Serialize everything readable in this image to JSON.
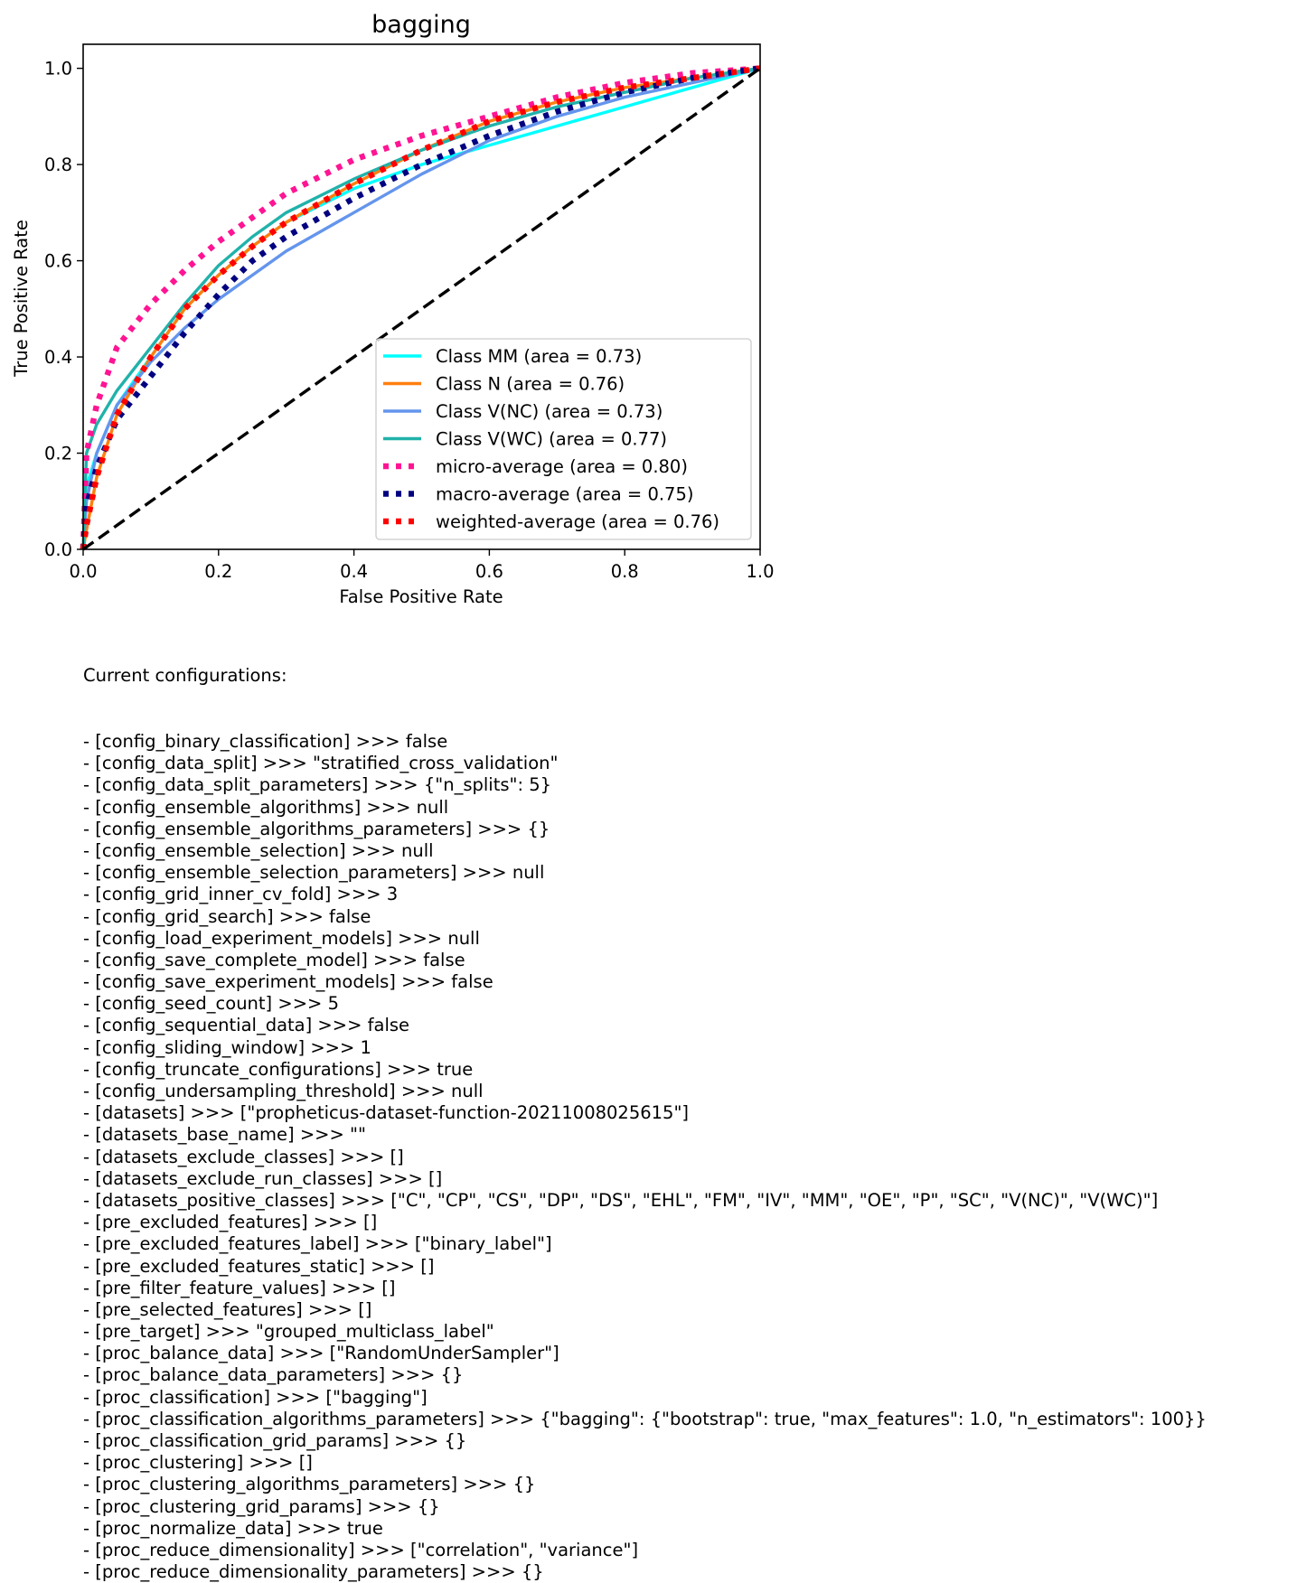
{
  "chart_data": {
    "type": "line",
    "title": "bagging",
    "xlabel": "False Positive Rate",
    "ylabel": "True Positive Rate",
    "xlim": [
      0.0,
      1.0
    ],
    "ylim": [
      0.0,
      1.05
    ],
    "xticks": [
      0.0,
      0.2,
      0.4,
      0.6,
      0.8,
      1.0
    ],
    "xtick_labels": [
      "0.0",
      "0.2",
      "0.4",
      "0.6",
      "0.8",
      "1.0"
    ],
    "yticks": [
      0.0,
      0.2,
      0.4,
      0.6,
      0.8,
      1.0
    ],
    "ytick_labels": [
      "0.0",
      "0.2",
      "0.4",
      "0.6",
      "0.8",
      "1.0"
    ],
    "grid": false,
    "legend_position": "lower-right",
    "series": [
      {
        "name": "Class MM (area = 0.73)",
        "color": "#00ffff",
        "style": "solid",
        "x": [
          0,
          0.005,
          0.02,
          0.05,
          0.1,
          0.15,
          0.2,
          0.25,
          0.3,
          0.4,
          0.5,
          0.6,
          0.7,
          0.8,
          0.9,
          1.0
        ],
        "y": [
          0,
          0.13,
          0.2,
          0.3,
          0.4,
          0.5,
          0.57,
          0.63,
          0.68,
          0.75,
          0.8,
          0.84,
          0.88,
          0.92,
          0.96,
          1.0
        ]
      },
      {
        "name": "Class N (area = 0.76)",
        "color": "#ff7f0e",
        "style": "solid",
        "x": [
          0,
          0.005,
          0.02,
          0.05,
          0.1,
          0.15,
          0.2,
          0.25,
          0.3,
          0.4,
          0.5,
          0.6,
          0.7,
          0.8,
          0.9,
          1.0
        ],
        "y": [
          0,
          0.04,
          0.15,
          0.28,
          0.4,
          0.5,
          0.57,
          0.63,
          0.68,
          0.76,
          0.83,
          0.89,
          0.93,
          0.96,
          0.98,
          1.0
        ]
      },
      {
        "name": "Class V(NC) (area = 0.73)",
        "color": "#6495ed",
        "style": "solid",
        "x": [
          0,
          0.005,
          0.02,
          0.05,
          0.1,
          0.15,
          0.2,
          0.25,
          0.3,
          0.4,
          0.5,
          0.6,
          0.7,
          0.8,
          0.9,
          1.0
        ],
        "y": [
          0,
          0.1,
          0.2,
          0.3,
          0.39,
          0.46,
          0.52,
          0.57,
          0.62,
          0.7,
          0.78,
          0.85,
          0.9,
          0.94,
          0.97,
          1.0
        ]
      },
      {
        "name": "Class V(WC) (area = 0.77)",
        "color": "#20b2aa",
        "style": "solid",
        "x": [
          0,
          0.005,
          0.02,
          0.05,
          0.1,
          0.15,
          0.2,
          0.25,
          0.3,
          0.4,
          0.5,
          0.6,
          0.7,
          0.8,
          0.9,
          1.0
        ],
        "y": [
          0,
          0.2,
          0.26,
          0.33,
          0.42,
          0.51,
          0.59,
          0.65,
          0.7,
          0.77,
          0.83,
          0.88,
          0.92,
          0.95,
          0.98,
          1.0
        ]
      },
      {
        "name": "micro-average (area = 0.80)",
        "color": "#ff1493",
        "style": "dotted",
        "x": [
          0,
          0.005,
          0.02,
          0.05,
          0.1,
          0.15,
          0.2,
          0.25,
          0.3,
          0.4,
          0.5,
          0.6,
          0.7,
          0.8,
          0.9,
          1.0
        ],
        "y": [
          0,
          0.2,
          0.3,
          0.42,
          0.51,
          0.58,
          0.64,
          0.69,
          0.74,
          0.81,
          0.86,
          0.9,
          0.94,
          0.97,
          0.99,
          1.0
        ]
      },
      {
        "name": "macro-average (area = 0.75)",
        "color": "#000080",
        "style": "dotted",
        "x": [
          0,
          0.005,
          0.02,
          0.05,
          0.1,
          0.15,
          0.2,
          0.25,
          0.3,
          0.4,
          0.5,
          0.6,
          0.7,
          0.8,
          0.9,
          1.0
        ],
        "y": [
          0,
          0.09,
          0.17,
          0.27,
          0.36,
          0.45,
          0.53,
          0.6,
          0.65,
          0.73,
          0.8,
          0.86,
          0.91,
          0.95,
          0.98,
          1.0
        ]
      },
      {
        "name": "weighted-average (area = 0.76)",
        "color": "#ff0000",
        "style": "dotted",
        "x": [
          0,
          0.005,
          0.02,
          0.05,
          0.1,
          0.15,
          0.2,
          0.25,
          0.3,
          0.4,
          0.5,
          0.6,
          0.7,
          0.8,
          0.9,
          1.0
        ],
        "y": [
          0,
          0.05,
          0.15,
          0.28,
          0.4,
          0.5,
          0.57,
          0.63,
          0.68,
          0.76,
          0.83,
          0.89,
          0.93,
          0.96,
          0.98,
          1.0
        ]
      }
    ],
    "reference_line": {
      "x": [
        0,
        1
      ],
      "y": [
        0,
        1
      ],
      "color": "#000000",
      "style": "dashed"
    }
  },
  "config": {
    "header": "Current configurations:",
    "lines": [
      "- [config_binary_classification] >>> false",
      "- [config_data_split] >>> \"stratified_cross_validation\"",
      "- [config_data_split_parameters] >>> {\"n_splits\": 5}",
      "- [config_ensemble_algorithms] >>> null",
      "- [config_ensemble_algorithms_parameters] >>> {}",
      "- [config_ensemble_selection] >>> null",
      "- [config_ensemble_selection_parameters] >>> null",
      "- [config_grid_inner_cv_fold] >>> 3",
      "- [config_grid_search] >>> false",
      "- [config_load_experiment_models] >>> null",
      "- [config_save_complete_model] >>> false",
      "- [config_save_experiment_models] >>> false",
      "- [config_seed_count] >>> 5",
      "- [config_sequential_data] >>> false",
      "- [config_sliding_window] >>> 1",
      "- [config_truncate_configurations] >>> true",
      "- [config_undersampling_threshold] >>> null",
      "- [datasets] >>> [\"propheticus-dataset-function-20211008025615\"]",
      "- [datasets_base_name] >>> \"\"",
      "- [datasets_exclude_classes] >>> []",
      "- [datasets_exclude_run_classes] >>> []",
      "- [datasets_positive_classes] >>> [\"C\", \"CP\", \"CS\", \"DP\", \"DS\", \"EHL\", \"FM\", \"IV\", \"MM\", \"OE\", \"P\", \"SC\", \"V(NC)\", \"V(WC)\"]",
      "- [pre_excluded_features] >>> []",
      "- [pre_excluded_features_label] >>> [\"binary_label\"]",
      "- [pre_excluded_features_static] >>> []",
      "- [pre_filter_feature_values] >>> []",
      "- [pre_selected_features] >>> []",
      "- [pre_target] >>> \"grouped_multiclass_label\"",
      "- [proc_balance_data] >>> [\"RandomUnderSampler\"]",
      "- [proc_balance_data_parameters] >>> {}",
      "- [proc_classification] >>> [\"bagging\"]",
      "- [proc_classification_algorithms_parameters] >>> {\"bagging\": {\"bootstrap\": true, \"max_features\": 1.0, \"n_estimators\": 100}}",
      "- [proc_classification_grid_params] >>> {}",
      "- [proc_clustering] >>> []",
      "- [proc_clustering_algorithms_parameters] >>> {}",
      "- [proc_clustering_grid_params] >>> {}",
      "- [proc_normalize_data] >>> true",
      "- [proc_reduce_dimensionality] >>> [\"correlation\", \"variance\"]",
      "- [proc_reduce_dimensionality_parameters] >>> {}"
    ]
  }
}
